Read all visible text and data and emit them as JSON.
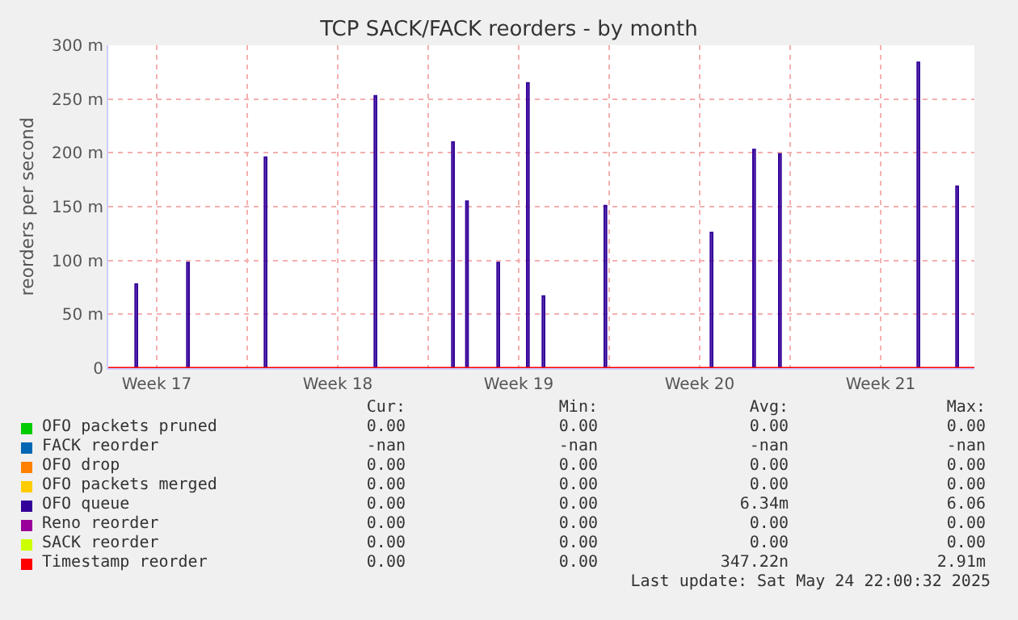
{
  "chart_data": {
    "type": "area",
    "title": "TCP SACK/FACK reorders - by month",
    "ylabel": "reorders per second",
    "xlim": [
      "2025-04-21T10:00",
      "2025-05-24T22:00"
    ],
    "xticks": [
      {
        "value": "2025-04-23T07:00",
        "label": "Week 17"
      },
      {
        "value": "2025-04-26T19:00",
        "label": null
      },
      {
        "value": "2025-04-30T07:00",
        "label": "Week 18"
      },
      {
        "value": "2025-05-03T19:00",
        "label": null
      },
      {
        "value": "2025-05-07T07:00",
        "label": "Week 19"
      },
      {
        "value": "2025-05-10T19:00",
        "label": null
      },
      {
        "value": "2025-05-14T07:00",
        "label": "Week 20"
      },
      {
        "value": "2025-05-17T19:00",
        "label": null
      },
      {
        "value": "2025-05-21T07:00",
        "label": "Week 21"
      }
    ],
    "ylim": [
      0,
      300
    ],
    "yticks": [
      0,
      {
        "value": 50,
        "label": "50 m"
      },
      {
        "value": 100,
        "label": "100 m"
      },
      {
        "value": 150,
        "label": "150 m"
      },
      {
        "value": 200,
        "label": "200 m"
      },
      {
        "value": 250,
        "label": "250 m"
      },
      {
        "value": 300,
        "label": "300 m"
      }
    ],
    "grid": true,
    "legend": "bottom",
    "series": [
      {
        "name": "OFO packets pruned",
        "color": "#00cc00"
      },
      {
        "name": "FACK reorder",
        "color": "#0066b3"
      },
      {
        "name": "OFO drop",
        "color": "#ff8000"
      },
      {
        "name": "OFO packets merged",
        "color": "#ffcc00"
      },
      {
        "name": "OFO queue",
        "color": "#330099",
        "x": [
          "2025-04-21T10:00",
          "2025-04-22T11:00",
          "2025-04-22T11:00",
          "2025-04-22T13:00",
          "2025-04-22T13:00",
          "2025-04-24T11:00",
          "2025-04-24T11:00",
          "2025-04-24T13:00",
          "2025-04-24T13:00",
          "2025-04-27T11:00",
          "2025-04-27T11:00",
          "2025-04-27T13:00",
          "2025-04-27T13:00",
          "2025-05-01T17:00",
          "2025-05-01T17:00",
          "2025-05-01T19:00",
          "2025-05-01T19:00",
          "2025-05-04T17:00",
          "2025-05-04T17:00",
          "2025-05-04T19:00",
          "2025-05-04T19:00",
          "2025-05-05T06:00",
          "2025-05-05T06:00",
          "2025-05-05T08:00",
          "2025-05-05T08:00",
          "2025-05-06T11:00",
          "2025-05-06T11:00",
          "2025-05-06T13:00",
          "2025-05-06T13:00",
          "2025-05-07T14:30",
          "2025-05-07T14:30",
          "2025-05-07T16:30",
          "2025-05-07T16:30",
          "2025-05-08T05:00",
          "2025-05-08T05:00",
          "2025-05-08T07:00",
          "2025-05-08T07:00",
          "2025-05-10T14:30",
          "2025-05-10T14:30",
          "2025-05-10T16:30",
          "2025-05-10T16:30",
          "2025-05-14T17:00",
          "2025-05-14T17:00",
          "2025-05-14T19:00",
          "2025-05-14T19:00",
          "2025-05-16T08:30",
          "2025-05-16T08:30",
          "2025-05-16T10:30",
          "2025-05-16T10:30",
          "2025-05-17T08:30",
          "2025-05-17T08:30",
          "2025-05-17T10:30",
          "2025-05-17T10:30",
          "2025-05-22T17:00",
          "2025-05-22T17:00",
          "2025-05-22T19:00",
          "2025-05-22T19:00",
          "2025-05-24T05:00",
          "2025-05-24T05:00",
          "2025-05-24T07:00",
          "2025-05-24T07:00",
          "2025-05-24T22:00"
        ],
        "values": [
          0,
          0,
          78,
          78,
          0,
          0,
          98,
          98,
          0,
          0,
          196,
          196,
          0,
          0,
          253,
          253,
          0,
          0,
          210,
          210,
          0,
          0,
          155,
          155,
          0,
          0,
          98,
          98,
          0,
          0,
          265,
          265,
          0,
          0,
          67,
          67,
          0,
          0,
          151,
          151,
          0,
          0,
          126,
          126,
          0,
          0,
          203,
          203,
          0,
          0,
          199,
          199,
          0,
          0,
          284,
          284,
          0,
          0,
          169,
          169,
          0,
          0
        ]
      },
      {
        "name": "Reno reorder",
        "color": "#990099"
      },
      {
        "name": "SACK reorder",
        "color": "#ccff00"
      },
      {
        "name": "Timestamp reorder",
        "color": "#ff0000",
        "type": "line",
        "x": [
          "2025-04-21T10:00",
          "2025-05-24T22:00"
        ],
        "values": [
          0,
          0
        ]
      }
    ],
    "annotations": [
      "Cur:",
      "Min:",
      "Avg:",
      "Max:",
      "0.00",
      "0.00",
      "0.00",
      "0.00",
      "-nan",
      "-nan",
      "-nan",
      "-nan",
      "0.00",
      "0.00",
      "0.00",
      "0.00",
      "0.00",
      "0.00",
      "0.00",
      "0.00",
      "0.00",
      "0.00",
      "6.34m",
      "6.06",
      "0.00",
      "0.00",
      "0.00",
      "0.00",
      "0.00",
      "0.00",
      "0.00",
      "0.00",
      "0.00",
      "0.00",
      "347.22n",
      "2.91m",
      "Last update: Sat May 24 22:00:32 2025"
    ]
  }
}
